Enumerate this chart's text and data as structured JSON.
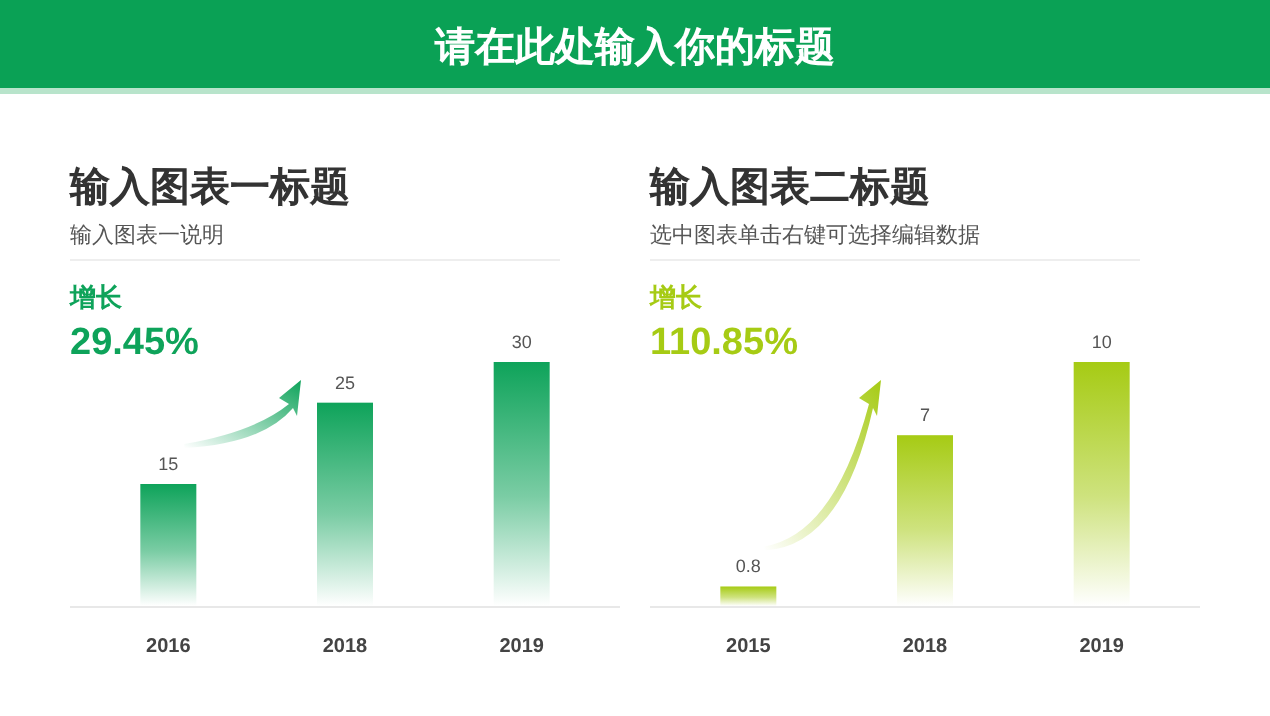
{
  "chart_data": [
    {
      "type": "other",
      "title": "请在此处输入你的标题"
    },
    {
      "type": "bar",
      "title": "输入图表一标题",
      "subtitle": "输入图表一说明",
      "annotations": [
        "增长",
        "29.45%"
      ],
      "categories": [
        "2016",
        "2018",
        "2019"
      ],
      "values": [
        15,
        25,
        30
      ],
      "color": "#0ea35a",
      "data_labels": true
    },
    {
      "type": "bar",
      "title": "输入图表二标题",
      "subtitle": "选中图表单击右键可选择编辑数据",
      "annotations": [
        "增长",
        "110.85%"
      ],
      "categories": [
        "2015",
        "2018",
        "2019"
      ],
      "values": [
        0.8,
        7,
        10
      ],
      "color": "#a6cb14",
      "data_labels": true
    }
  ]
}
